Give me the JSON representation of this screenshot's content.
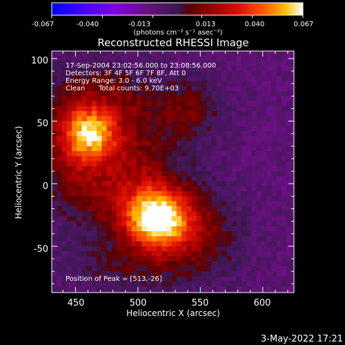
{
  "colorbar": {
    "tick_labels": [
      "-0.067",
      "-0.040",
      "-0.013",
      "0.013",
      "0.040",
      "0.067"
    ],
    "units": "(photons cm⁻² s⁻¹ asec⁻²)",
    "colors": [
      "#0000ff",
      "#5a00ff",
      "#9000b0",
      "#3b1e5a",
      "#700000",
      "#d00000",
      "#ff3000",
      "#ffa000",
      "#ffffff"
    ]
  },
  "plot": {
    "title": "Reconstructed RHESSI Image",
    "xlabel": "Heliocentric X (arcsec)",
    "ylabel": "Heliocentric Y (arcsec)",
    "x_ticks": [
      "450",
      "500",
      "550",
      "600"
    ],
    "y_ticks": [
      "100",
      "50",
      "0",
      "-50"
    ],
    "xlim": [
      431,
      625
    ],
    "ylim": [
      -87,
      106
    ]
  },
  "annotations": {
    "time_range": "17-Sep-2004 23:02:56.000 to 23:08:56.000",
    "detectors": "Detectors: 3F 4F 5F 6F 7F 8F, Att 0",
    "energy": "Energy Range: 3.0 - 6.0 keV",
    "method": "Clean",
    "counts": "Total counts: 9.70E+03",
    "peak": "Position of Peak = [513,-26]"
  },
  "footer": {
    "timestamp": "3-May-2022 17:21"
  },
  "chart_data": {
    "type": "heatmap",
    "title": "Reconstructed RHESSI Image",
    "xlabel": "Heliocentric X (arcsec)",
    "ylabel": "Heliocentric Y (arcsec)",
    "xlim": [
      431,
      625
    ],
    "ylim": [
      -87,
      106
    ],
    "x_ticks": [
      450,
      500,
      550,
      600
    ],
    "y_ticks": [
      100,
      50,
      0,
      -50
    ],
    "value_range": [
      -0.067,
      0.067
    ],
    "peak": [
      513,
      -26
    ],
    "sources": [
      {
        "x": 513,
        "y": -26,
        "sx": 18,
        "sy": 16,
        "amp": 0.067
      },
      {
        "x": 460,
        "y": 42,
        "sx": 16,
        "sy": 14,
        "amp": 0.052
      },
      {
        "x": 490,
        "y": 5,
        "sx": 30,
        "sy": 30,
        "amp": 0.03
      },
      {
        "x": 540,
        "y": -40,
        "sx": 28,
        "sy": 25,
        "amp": 0.025
      },
      {
        "x": 470,
        "y": 70,
        "sx": 35,
        "sy": 20,
        "amp": 0.022
      },
      {
        "x": 445,
        "y": 20,
        "sx": 18,
        "sy": 30,
        "amp": 0.02
      },
      {
        "x": 540,
        "y": 60,
        "sx": 20,
        "sy": 18,
        "amp": 0.018
      },
      {
        "x": 480,
        "y": -65,
        "sx": 30,
        "sy": 15,
        "amp": 0.012
      }
    ]
  }
}
